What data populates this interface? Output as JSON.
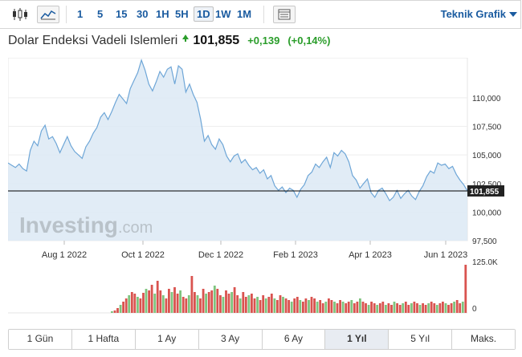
{
  "toolbar": {
    "intervals": [
      "1",
      "5",
      "15",
      "30",
      "1H",
      "5H",
      "1D",
      "1W",
      "1M"
    ],
    "active_interval": "1D",
    "technical_label": "Teknik Grafik",
    "icons": [
      "candlestick-icon",
      "area-chart-icon",
      "table-icon"
    ]
  },
  "header": {
    "title": "Dolar Endeksi Vadeli Islemleri",
    "price": "101,855",
    "change": "+0,139",
    "change_pct": "(+0,14%)",
    "direction": "up"
  },
  "watermark": {
    "brand": "Investing",
    "suffix": ".com"
  },
  "ranges": [
    "1 Gün",
    "1 Hafta",
    "1 Ay",
    "3 Ay",
    "6 Ay",
    "1 Yıl",
    "5 Yıl",
    "Maks."
  ],
  "active_range": "1 Yıl",
  "colors": {
    "line": "#6ea6d7",
    "fill": "#dce9f5",
    "up": "#2a9d2a",
    "link": "#1a5ba0",
    "vol_up": "#7ec47e",
    "vol_down": "#d9534f"
  },
  "chart_data": {
    "type": "area",
    "x_tick_labels": [
      "Aug 1 2022",
      "Oct 1 2022",
      "Dec 1 2022",
      "Feb 1 2023",
      "Apr 1 2023",
      "Jun 1 2023"
    ],
    "y_tick_labels": [
      "110,000",
      "107,500",
      "105,000",
      "102,500",
      "100,000",
      "97,500"
    ],
    "y_ticks": [
      110,
      107.5,
      105,
      102.5,
      100,
      97.5
    ],
    "ylim": [
      97.5,
      113.5
    ],
    "last_price_label": "101,855",
    "last_price": 101.855,
    "series": [
      {
        "values": [
          104.3,
          104.1,
          103.9,
          104.2,
          103.8,
          103.6,
          105.4,
          106.2,
          105.8,
          107.1,
          107.6,
          106.4,
          106.6,
          106.0,
          105.2,
          105.9,
          106.6,
          105.8,
          105.3,
          105.0,
          104.7,
          105.7,
          106.2,
          106.9,
          107.4,
          108.3,
          108.7,
          108.1,
          108.8,
          109.6,
          110.3,
          109.9,
          109.5,
          110.8,
          111.5,
          112.2,
          113.3,
          112.4,
          111.2,
          110.6,
          111.4,
          112.3,
          111.8,
          112.5,
          112.7,
          111.2,
          112.8,
          112.5,
          110.5,
          111.2,
          110.3,
          109.6,
          108.1,
          106.2,
          106.7,
          105.9,
          105.5,
          106.4,
          105.9,
          104.9,
          104.4,
          104.9,
          105.1,
          104.3,
          104.6,
          104.1,
          103.7,
          103.9,
          103.4,
          103.7,
          102.9,
          103.2,
          102.3,
          101.9,
          102.2,
          101.7,
          102.1,
          101.9,
          101.3,
          102.0,
          102.4,
          103.2,
          103.5,
          104.2,
          103.9,
          104.4,
          104.8,
          103.9,
          105.2,
          104.9,
          105.4,
          105.1,
          104.4,
          103.2,
          102.8,
          102.1,
          102.5,
          102.9,
          101.7,
          101.3,
          101.9,
          102.1,
          101.6,
          101.0,
          101.3,
          101.9,
          101.2,
          101.6,
          101.9,
          101.4,
          101.1,
          101.8,
          102.3,
          103.1,
          103.6,
          103.4,
          104.3,
          104.1,
          104.2,
          103.8,
          104.0,
          103.3,
          102.8,
          102.4,
          101.855
        ]
      }
    ],
    "volume": {
      "axis_labels": [
        "125.0K",
        "0"
      ],
      "bars": [
        2,
        3,
        6,
        10,
        14,
        18,
        22,
        26,
        24,
        20,
        18,
        25,
        30,
        28,
        35,
        24,
        40,
        28,
        22,
        18,
        30,
        26,
        32,
        24,
        28,
        20,
        18,
        22,
        46,
        26,
        22,
        18,
        30,
        24,
        26,
        28,
        34,
        30,
        22,
        20,
        28,
        24,
        26,
        32,
        22,
        18,
        26,
        20,
        22,
        24,
        18,
        20,
        16,
        22,
        18,
        20,
        24,
        18,
        16,
        22,
        20,
        18,
        16,
        14,
        18,
        20,
        16,
        14,
        18,
        16,
        20,
        18,
        14,
        16,
        12,
        14,
        18,
        16,
        14,
        12,
        16,
        14,
        12,
        14,
        16,
        12,
        14,
        18,
        14,
        12,
        10,
        14,
        12,
        10,
        12,
        14,
        10,
        12,
        10,
        14,
        12,
        10,
        12,
        14,
        10,
        12,
        14,
        12,
        10,
        12,
        10,
        12,
        14,
        12,
        10,
        12,
        14,
        12,
        10,
        12,
        14,
        16,
        12,
        14,
        60
      ]
    }
  }
}
